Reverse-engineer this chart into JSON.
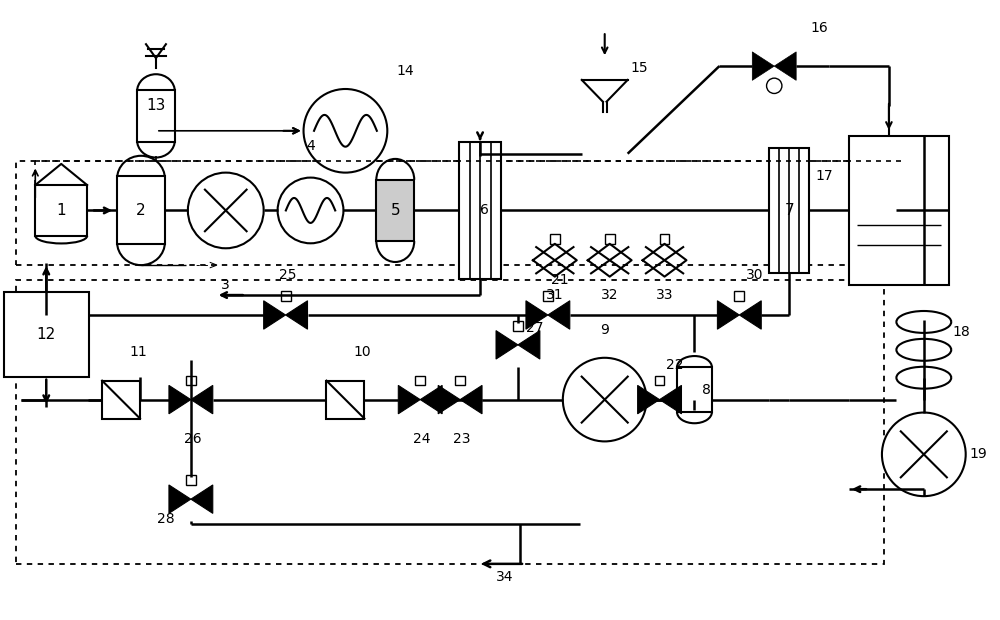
{
  "bg_color": "#ffffff",
  "line_color": "#000000",
  "lw_main": 1.8,
  "lw_comp": 1.5,
  "lw_thin": 1.0,
  "label_fontsize": 11,
  "small_fontsize": 10
}
